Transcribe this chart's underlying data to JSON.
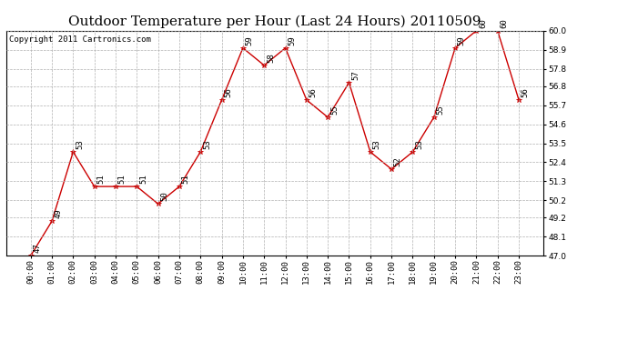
{
  "title": "Outdoor Temperature per Hour (Last 24 Hours) 20110509",
  "copyright": "Copyright 2011 Cartronics.com",
  "hours": [
    "00:00",
    "01:00",
    "02:00",
    "03:00",
    "04:00",
    "05:00",
    "06:00",
    "07:00",
    "08:00",
    "09:00",
    "10:00",
    "11:00",
    "12:00",
    "13:00",
    "14:00",
    "15:00",
    "16:00",
    "17:00",
    "18:00",
    "19:00",
    "20:00",
    "21:00",
    "22:00",
    "23:00"
  ],
  "values": [
    47,
    49,
    53,
    51,
    51,
    51,
    50,
    51,
    53,
    56,
    59,
    58,
    59,
    56,
    55,
    57,
    53,
    52,
    53,
    55,
    59,
    60,
    60,
    56
  ],
  "labels": [
    "47",
    "49",
    "53",
    "51",
    "51",
    "51",
    "50",
    "51",
    "53",
    "56",
    "59",
    "58",
    "59",
    "56",
    "55",
    "57",
    "53",
    "52",
    "53",
    "55",
    "59",
    "60",
    "60",
    "56"
  ],
  "line_color": "#cc0000",
  "marker_color": "#cc0000",
  "bg_color": "#ffffff",
  "grid_color": "#b0b0b0",
  "ylim_min": 47.0,
  "ylim_max": 60.0,
  "yticks": [
    47.0,
    48.1,
    49.2,
    50.2,
    51.3,
    52.4,
    53.5,
    54.6,
    55.7,
    56.8,
    57.8,
    58.9,
    60.0
  ],
  "title_fontsize": 11,
  "copyright_fontsize": 6.5,
  "annotation_fontsize": 6.5
}
